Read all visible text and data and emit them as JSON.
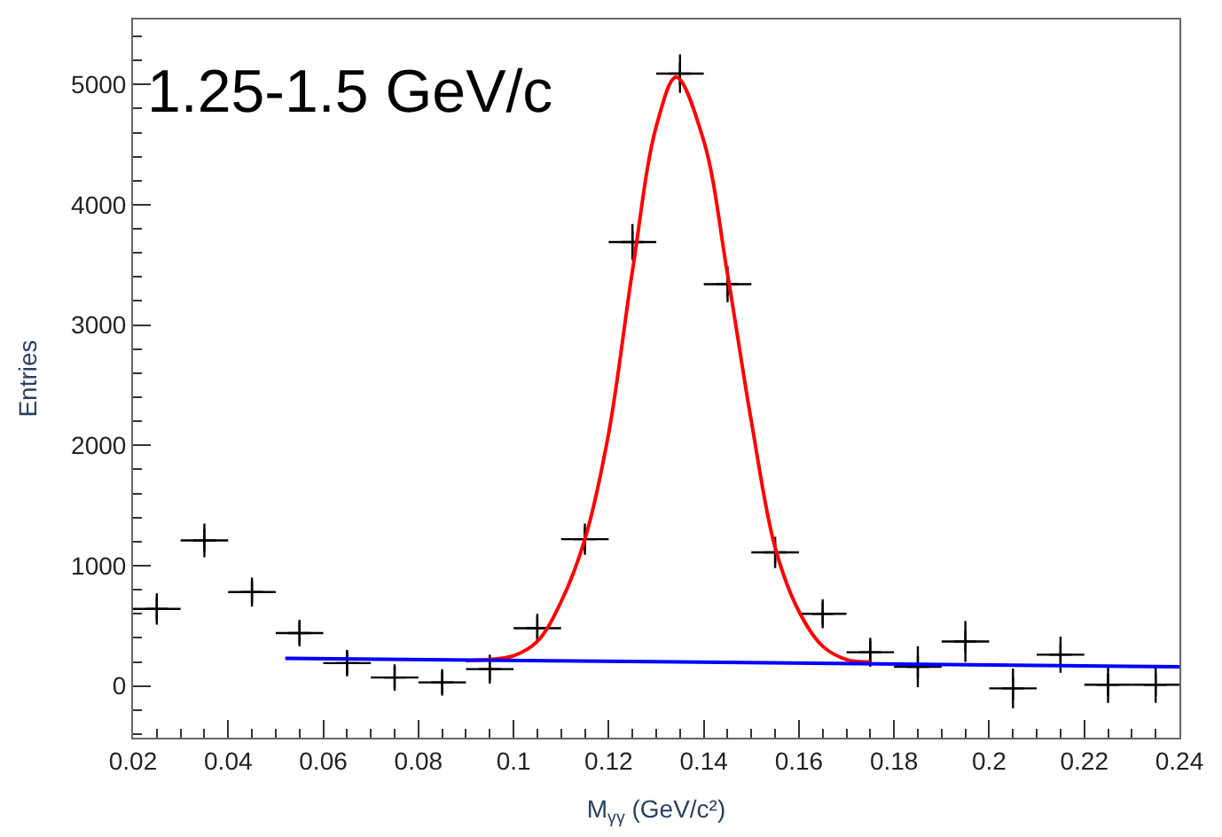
{
  "chart_data": {
    "type": "scatter",
    "title": "1.25-1.5 GeV/c",
    "xlabel": "M$_{γγ}$ (GeV/c²)",
    "ylabel": "Entries",
    "xlim": [
      0.02,
      0.24
    ],
    "xticks": [
      0.02,
      0.04,
      0.06,
      0.08,
      0.1,
      0.12,
      0.14,
      0.16,
      0.18,
      0.2,
      0.22,
      0.24
    ],
    "ylim": [
      -430,
      5540
    ],
    "yticks": [
      0,
      1000,
      2000,
      3000,
      4000,
      5000
    ],
    "grid": false,
    "legend": false,
    "series": [
      {
        "color": "#000000",
        "marker": "cross",
        "x": [
          0.025,
          0.035,
          0.045,
          0.055,
          0.065,
          0.075,
          0.085,
          0.095,
          0.105,
          0.115,
          0.125,
          0.135,
          0.145,
          0.155,
          0.165,
          0.175,
          0.185,
          0.195,
          0.205,
          0.215,
          0.225,
          0.235
        ],
        "values": [
          640,
          1210,
          780,
          440,
          190,
          70,
          30,
          140,
          480,
          1220,
          3690,
          5090,
          3340,
          1110,
          600,
          280,
          160,
          370,
          -20,
          260,
          10,
          10
        ],
        "errors": [
          130,
          140,
          120,
          110,
          110,
          110,
          110,
          120,
          120,
          130,
          150,
          160,
          150,
          130,
          120,
          120,
          170,
          170,
          165,
          150,
          150,
          150
        ],
        "xerrors": [
          0.005,
          0.005,
          0.005,
          0.005,
          0.005,
          0.005,
          0.005,
          0.005,
          0.005,
          0.005,
          0.005,
          0.005,
          0.005,
          0.005,
          0.005,
          0.005,
          0.005,
          0.005,
          0.005,
          0.005,
          0.005,
          0.005
        ]
      },
      {
        "type": "line",
        "color": "#ff0000",
        "x": [
          0.09,
          0.095,
          0.1,
          0.105,
          0.11,
          0.115,
          0.12,
          0.125,
          0.13,
          0.1342,
          0.14,
          0.145,
          0.15,
          0.155,
          0.16,
          0.165,
          0.17,
          0.175
        ],
        "values": [
          210,
          220,
          250,
          370,
          700,
          1220,
          2100,
          3450,
          4650,
          5060,
          4530,
          3420,
          2200,
          1150,
          620,
          330,
          220,
          200
        ]
      },
      {
        "type": "line",
        "color": "#0000ff",
        "x": [
          0.052,
          0.24
        ],
        "values": [
          230,
          160
        ]
      }
    ]
  }
}
